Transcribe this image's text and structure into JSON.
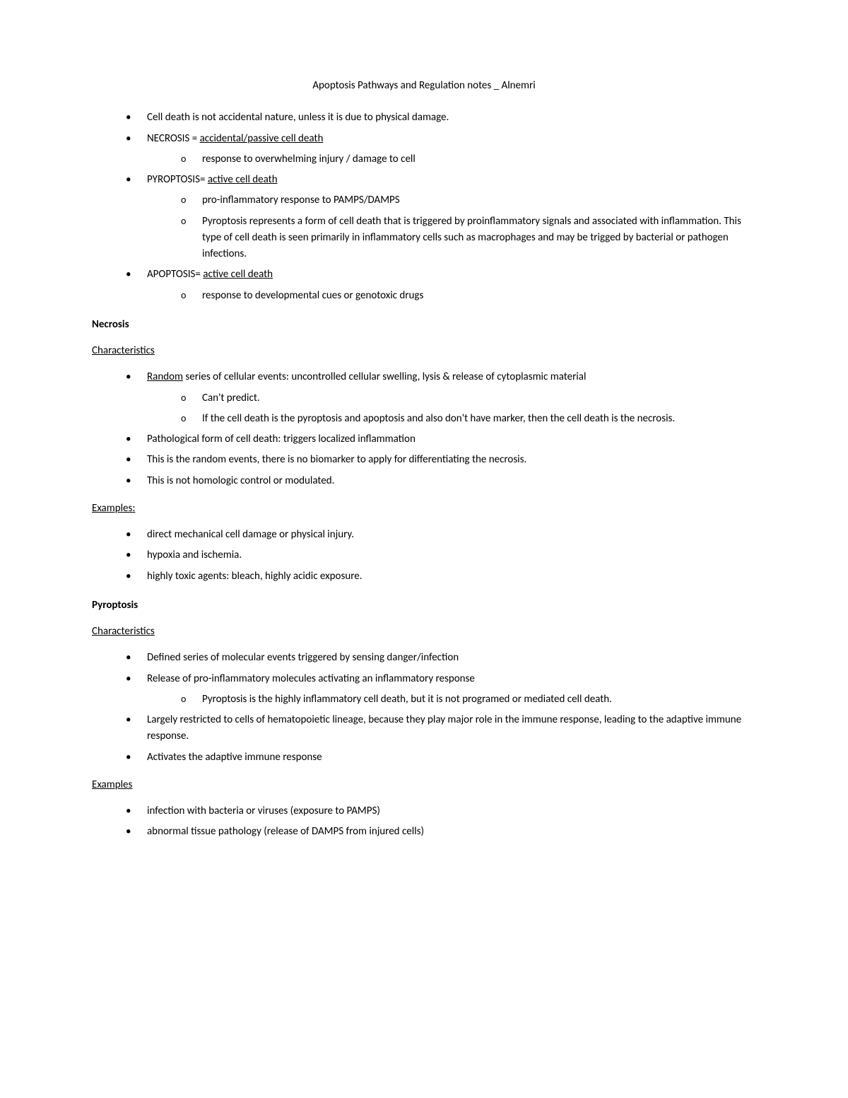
{
  "title": "Apoptosis Pathways and Regulation notes _ Alnemri",
  "intro": {
    "li1": "Cell death is not accidental nature, unless it is due to physical damage.",
    "li2_prefix": "NECROSIS = ",
    "li2_underlined": "accidental/passive cell death",
    "li2_sub1": "response to overwhelming injury / damage to cell",
    "li3_prefix": "PYROPTOSIS= ",
    "li3_underlined": "active cell death",
    "li3_sub1": "pro-inflammatory response to PAMPS/DAMPS",
    "li3_sub2": "Pyroptosis represents a form of cell death that is triggered by proinflammatory signals and associated with inflammation. This type of cell death is seen primarily in inflammatory cells such as macrophages and may be trigged by bacterial or pathogen infections.",
    "li4_prefix": "APOPTOSIS= ",
    "li4_underlined": "active cell death",
    "li4_sub1": "response to developmental cues or genotoxic drugs"
  },
  "necrosis": {
    "heading": "Necrosis",
    "char_heading": "Characteristics",
    "c1_underlined": "Random",
    "c1_rest": " series of cellular events: uncontrolled cellular swelling, lysis & release of cytoplasmic material",
    "c1_sub1": "Can't predict.",
    "c1_sub2": "If the cell death is the pyroptosis and apoptosis and also don't have marker, then the cell death is the necrosis.",
    "c2": "Pathological form of cell death: triggers localized inflammation",
    "c3": "This is the random events, there is no biomarker to apply for differentiating the necrosis.",
    "c4": "This is not homologic control or modulated.",
    "ex_heading": "Examples:",
    "e1": "direct mechanical cell damage or physical injury.",
    "e2": "hypoxia and ischemia.",
    "e3": "highly toxic agents: bleach, highly acidic exposure."
  },
  "pyroptosis": {
    "heading": "Pyroptosis",
    "char_heading": "Characteristics",
    "c1": "Defined series of molecular events triggered by sensing danger/infection",
    "c2": "Release of pro-inflammatory molecules activating an inflammatory response",
    "c2_sub1": "Pyroptosis is the highly inflammatory cell death, but it is not programed or mediated cell death.",
    "c3": "Largely restricted to cells of hematopoietic lineage, because they play major role in the immune response, leading to the adaptive immune response.",
    "c4": "Activates the adaptive immune response",
    "ex_heading": "Examples",
    "e1": "infection with bacteria or viruses (exposure to PAMPS)",
    "e2": "abnormal tissue pathology (release of DAMPS from injured cells)"
  }
}
